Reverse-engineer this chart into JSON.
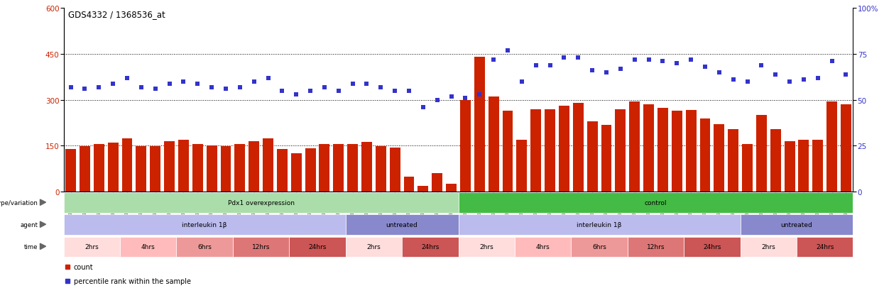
{
  "title": "GDS4332 / 1368536_at",
  "samples": [
    "GSM998740",
    "GSM998753",
    "GSM998766",
    "GSM998774",
    "GSM998729",
    "GSM998754",
    "GSM998767",
    "GSM998775",
    "GSM998741",
    "GSM998755",
    "GSM998768",
    "GSM998776",
    "GSM998730",
    "GSM998742",
    "GSM998747",
    "GSM998777",
    "GSM998731",
    "GSM998748",
    "GSM998756",
    "GSM998769",
    "GSM998732",
    "GSM998749",
    "GSM998757",
    "GSM998778",
    "GSM998733",
    "GSM998758",
    "GSM998770",
    "GSM998779",
    "GSM998734",
    "GSM998743",
    "GSM998759",
    "GSM998780",
    "GSM998735",
    "GSM998750",
    "GSM998760",
    "GSM998782",
    "GSM998744",
    "GSM998751",
    "GSM998761",
    "GSM998771",
    "GSM998736",
    "GSM998745",
    "GSM998762",
    "GSM998781",
    "GSM998737",
    "GSM998752",
    "GSM998763",
    "GSM998772",
    "GSM998738",
    "GSM998764",
    "GSM998773",
    "GSM998783",
    "GSM998739",
    "GSM998746",
    "GSM998765",
    "GSM998784"
  ],
  "bar_values": [
    140,
    148,
    155,
    160,
    175,
    148,
    148,
    165,
    170,
    155,
    152,
    148,
    155,
    165,
    175,
    140,
    125,
    142,
    155,
    155,
    155,
    162,
    148,
    145,
    50,
    18,
    60,
    25,
    300,
    440,
    310,
    265,
    170,
    270,
    270,
    280,
    290,
    230,
    218,
    270,
    295,
    285,
    275,
    265,
    268,
    240,
    220,
    205,
    155,
    250,
    205,
    165,
    170,
    170,
    295,
    285
  ],
  "dot_values": [
    57,
    56,
    57,
    59,
    62,
    57,
    56,
    59,
    60,
    59,
    57,
    56,
    57,
    60,
    62,
    55,
    53,
    55,
    57,
    55,
    59,
    59,
    57,
    55,
    55,
    46,
    50,
    52,
    51,
    53,
    72,
    77,
    60,
    69,
    69,
    73,
    73,
    66,
    65,
    67,
    72,
    72,
    71,
    70,
    72,
    68,
    65,
    61,
    60,
    69,
    64,
    60,
    61,
    62,
    71,
    64
  ],
  "ylim_left": [
    0,
    600
  ],
  "ylim_right": [
    0,
    100
  ],
  "yticks_left": [
    0,
    150,
    300,
    450,
    600
  ],
  "yticks_right": [
    0,
    25,
    50,
    75,
    100
  ],
  "bar_color": "#cc2200",
  "dot_color": "#3333cc",
  "bg_color": "#ffffff",
  "panel_rows": [
    {
      "label": "genotype/variation",
      "segments": [
        {
          "text": "Pdx1 overexpression",
          "start": 0,
          "end": 28,
          "color": "#aaddaa"
        },
        {
          "text": "control",
          "start": 28,
          "end": 56,
          "color": "#44bb44"
        }
      ]
    },
    {
      "label": "agent",
      "segments": [
        {
          "text": "interleukin 1β",
          "start": 0,
          "end": 20,
          "color": "#bbbbee"
        },
        {
          "text": "untreated",
          "start": 20,
          "end": 28,
          "color": "#8888cc"
        },
        {
          "text": "interleukin 1β",
          "start": 28,
          "end": 48,
          "color": "#bbbbee"
        },
        {
          "text": "untreated",
          "start": 48,
          "end": 56,
          "color": "#8888cc"
        }
      ]
    },
    {
      "label": "time",
      "segments": [
        {
          "text": "2hrs",
          "start": 0,
          "end": 4,
          "color": "#ffdddd"
        },
        {
          "text": "4hrs",
          "start": 4,
          "end": 8,
          "color": "#ffbbbb"
        },
        {
          "text": "6hrs",
          "start": 8,
          "end": 12,
          "color": "#ee9999"
        },
        {
          "text": "12hrs",
          "start": 12,
          "end": 16,
          "color": "#dd7777"
        },
        {
          "text": "24hrs",
          "start": 16,
          "end": 20,
          "color": "#cc5555"
        },
        {
          "text": "2hrs",
          "start": 20,
          "end": 24,
          "color": "#ffdddd"
        },
        {
          "text": "24hrs",
          "start": 24,
          "end": 28,
          "color": "#cc5555"
        },
        {
          "text": "2hrs",
          "start": 28,
          "end": 32,
          "color": "#ffdddd"
        },
        {
          "text": "4hrs",
          "start": 32,
          "end": 36,
          "color": "#ffbbbb"
        },
        {
          "text": "6hrs",
          "start": 36,
          "end": 40,
          "color": "#ee9999"
        },
        {
          "text": "12hrs",
          "start": 40,
          "end": 44,
          "color": "#dd7777"
        },
        {
          "text": "24hrs",
          "start": 44,
          "end": 48,
          "color": "#cc5555"
        },
        {
          "text": "2hrs",
          "start": 48,
          "end": 52,
          "color": "#ffdddd"
        },
        {
          "text": "24hrs",
          "start": 52,
          "end": 56,
          "color": "#cc5555"
        }
      ]
    }
  ],
  "legend_items": [
    {
      "label": "count",
      "color": "#cc2200"
    },
    {
      "label": "percentile rank within the sample",
      "color": "#3333cc"
    }
  ]
}
